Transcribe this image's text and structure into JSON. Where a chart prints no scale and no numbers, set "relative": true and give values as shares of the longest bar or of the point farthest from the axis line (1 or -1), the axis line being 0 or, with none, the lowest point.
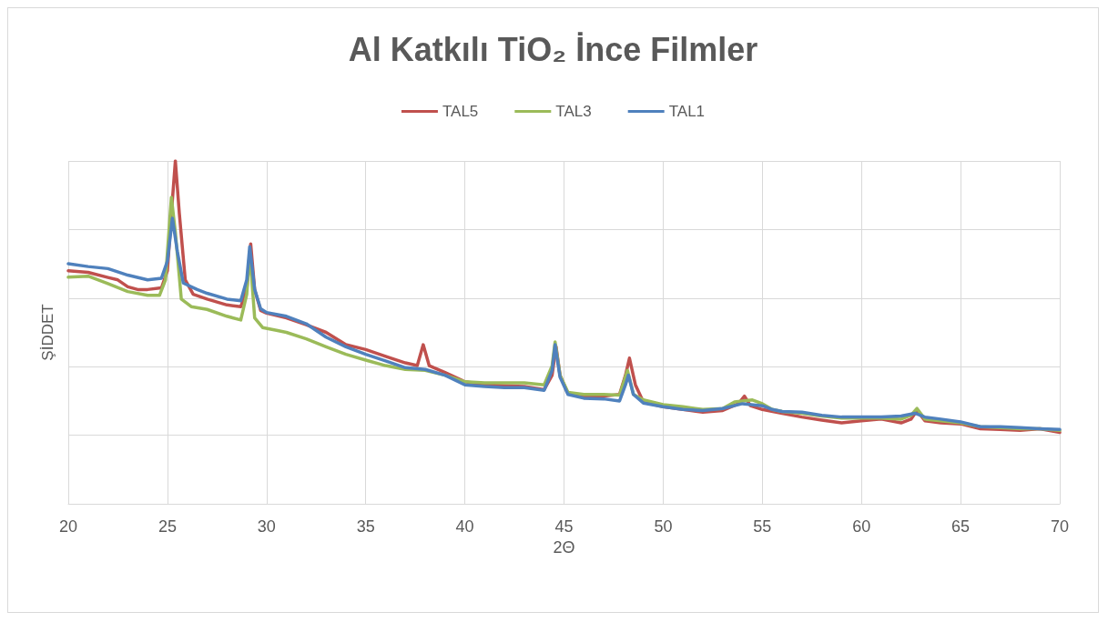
{
  "chart_data": {
    "type": "line",
    "title": "Al Katkılı TiO₂ İnce Filmler",
    "xlabel": "2Θ",
    "ylabel": "ŞİDDET",
    "relative": true,
    "xlim": [
      20,
      70
    ],
    "xticks": [
      20,
      25,
      30,
      35,
      40,
      45,
      50,
      55,
      60,
      65,
      70
    ],
    "grid": true,
    "legend": "top",
    "marker": "none",
    "line_style": "solid",
    "series": [
      {
        "name": "TAL5",
        "color": "#c0504d",
        "x": [
          20,
          21,
          22,
          22.5,
          23,
          23.5,
          24,
          24.7,
          25,
          25.2,
          25.4,
          25.6,
          25.9,
          26.3,
          27,
          28,
          28.7,
          29,
          29.2,
          29.4,
          29.7,
          30,
          31,
          32,
          33,
          34,
          35,
          36,
          37,
          37.6,
          37.9,
          38.2,
          39,
          40,
          41,
          42,
          43,
          44,
          44.4,
          44.6,
          44.8,
          45.2,
          46,
          47,
          47.8,
          48.1,
          48.3,
          48.6,
          49,
          50,
          51,
          52,
          53,
          53.8,
          54.1,
          54.4,
          55,
          56,
          57,
          58,
          59,
          60,
          61,
          62,
          62.5,
          62.8,
          63.2,
          64,
          65,
          66,
          67,
          68,
          69,
          70
        ],
        "values": [
          0.68,
          0.675,
          0.66,
          0.653,
          0.633,
          0.625,
          0.625,
          0.63,
          0.68,
          0.847,
          1.0,
          0.847,
          0.653,
          0.611,
          0.597,
          0.58,
          0.575,
          0.625,
          0.758,
          0.625,
          0.564,
          0.556,
          0.542,
          0.522,
          0.5,
          0.464,
          0.45,
          0.43,
          0.411,
          0.403,
          0.464,
          0.403,
          0.383,
          0.356,
          0.347,
          0.344,
          0.342,
          0.333,
          0.375,
          0.458,
          0.375,
          0.322,
          0.314,
          0.314,
          0.319,
          0.375,
          0.425,
          0.347,
          0.297,
          0.283,
          0.275,
          0.267,
          0.272,
          0.292,
          0.314,
          0.286,
          0.275,
          0.264,
          0.253,
          0.244,
          0.236,
          0.242,
          0.247,
          0.236,
          0.247,
          0.272,
          0.242,
          0.236,
          0.233,
          0.219,
          0.217,
          0.214,
          0.219,
          0.208
        ]
      },
      {
        "name": "TAL3",
        "color": "#9bbb59",
        "x": [
          20,
          21,
          22,
          23,
          24,
          24.6,
          24.9,
          25.2,
          25.4,
          25.7,
          26.2,
          27,
          28,
          28.7,
          29,
          29.15,
          29.4,
          29.8,
          30.5,
          31,
          32,
          33,
          34,
          35,
          36,
          37,
          38,
          39,
          40,
          41,
          42,
          43,
          44,
          44.4,
          44.55,
          44.8,
          45.2,
          46,
          47,
          47.8,
          48.2,
          48.5,
          49,
          50,
          51,
          52,
          53,
          53.6,
          54.5,
          55,
          55.5,
          56,
          57,
          58,
          59,
          60,
          61,
          62,
          62.5,
          62.8,
          63.2,
          64,
          65,
          66,
          67,
          68,
          69,
          70
        ],
        "values": [
          0.661,
          0.664,
          0.642,
          0.619,
          0.608,
          0.608,
          0.653,
          0.894,
          0.792,
          0.597,
          0.575,
          0.567,
          0.547,
          0.536,
          0.611,
          0.736,
          0.542,
          0.514,
          0.506,
          0.5,
          0.481,
          0.458,
          0.436,
          0.419,
          0.403,
          0.392,
          0.389,
          0.375,
          0.356,
          0.353,
          0.353,
          0.353,
          0.347,
          0.403,
          0.472,
          0.375,
          0.325,
          0.319,
          0.319,
          0.317,
          0.389,
          0.319,
          0.303,
          0.289,
          0.283,
          0.275,
          0.278,
          0.297,
          0.303,
          0.292,
          0.275,
          0.269,
          0.264,
          0.256,
          0.25,
          0.25,
          0.25,
          0.247,
          0.258,
          0.278,
          0.247,
          0.242,
          0.236,
          0.225,
          0.222,
          0.219,
          0.219,
          0.214
        ]
      },
      {
        "name": "TAL1",
        "color": "#4f81bd",
        "x": [
          20,
          21,
          22,
          23,
          24,
          24.7,
          25,
          25.25,
          25.5,
          25.8,
          26.5,
          27,
          28,
          28.7,
          29,
          29.15,
          29.4,
          29.7,
          30,
          31,
          32,
          33,
          34,
          35,
          36,
          37,
          38,
          39,
          40,
          41,
          42,
          43,
          44,
          44.4,
          44.55,
          44.8,
          45.2,
          46,
          47,
          47.8,
          48.1,
          48.25,
          48.5,
          49,
          50,
          51,
          52,
          53,
          54,
          55,
          55.5,
          56,
          57,
          58,
          59,
          60,
          61,
          62,
          62.7,
          63.2,
          64,
          65,
          66,
          67,
          68,
          69,
          70
        ],
        "values": [
          0.7,
          0.692,
          0.686,
          0.667,
          0.653,
          0.658,
          0.708,
          0.833,
          0.736,
          0.644,
          0.625,
          0.614,
          0.597,
          0.592,
          0.653,
          0.75,
          0.625,
          0.569,
          0.558,
          0.547,
          0.525,
          0.486,
          0.458,
          0.436,
          0.417,
          0.397,
          0.392,
          0.375,
          0.347,
          0.342,
          0.339,
          0.339,
          0.331,
          0.389,
          0.464,
          0.369,
          0.319,
          0.308,
          0.306,
          0.3,
          0.347,
          0.375,
          0.319,
          0.294,
          0.283,
          0.275,
          0.272,
          0.278,
          0.292,
          0.286,
          0.275,
          0.269,
          0.267,
          0.258,
          0.253,
          0.253,
          0.253,
          0.256,
          0.264,
          0.253,
          0.247,
          0.239,
          0.225,
          0.225,
          0.222,
          0.219,
          0.217
        ]
      }
    ]
  }
}
